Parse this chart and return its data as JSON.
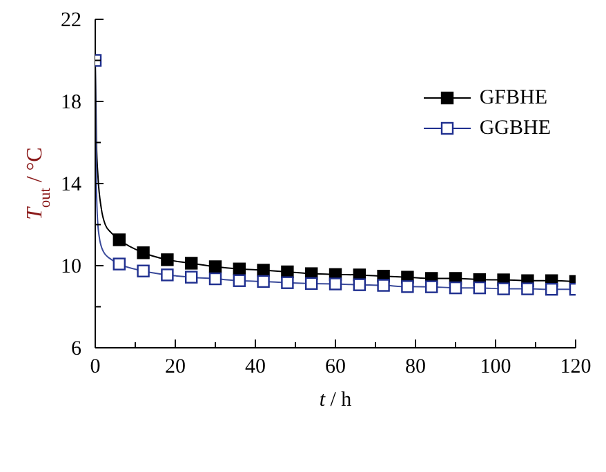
{
  "chart_data": {
    "type": "line",
    "xlabel": "t / h",
    "ylabel": "T$_{out}$ / °C",
    "xlim": [
      0,
      120
    ],
    "ylim": [
      6,
      22
    ],
    "xticks": [
      0,
      {
        "value": 10,
        "label": null
      },
      20,
      {
        "value": 30,
        "label": null
      },
      40,
      {
        "value": 50,
        "label": null
      },
      60,
      {
        "value": 70,
        "label": null
      },
      80,
      {
        "value": 90,
        "label": null
      },
      100,
      {
        "value": 110,
        "label": null
      },
      120
    ],
    "yticks": [
      6,
      {
        "value": 8,
        "label": null
      },
      10,
      {
        "value": 12,
        "label": null
      },
      14,
      {
        "value": 16,
        "label": null
      },
      18,
      {
        "value": 20,
        "label": null
      },
      22
    ],
    "legend": "top right",
    "marker": "square",
    "line_style": "solid",
    "grid": false,
    "series": [
      {
        "type": "line",
        "color": "#000000",
        "marker": "none",
        "x": [
          0,
          0.3,
          0.7,
          1.5,
          2.5,
          4,
          6,
          12,
          18,
          24,
          30,
          36,
          42,
          48,
          54,
          60,
          66,
          72,
          78,
          84,
          90,
          96,
          102,
          108,
          114,
          120
        ],
        "values": [
          20,
          16,
          14.3,
          12.8,
          12.0,
          11.6,
          11.26,
          10.63,
          10.29,
          10.12,
          9.95,
          9.84,
          9.78,
          9.7,
          9.61,
          9.57,
          9.55,
          9.49,
          9.44,
          9.38,
          9.38,
          9.32,
          9.31,
          9.27,
          9.27,
          9.23
        ]
      },
      {
        "type": "line",
        "color": "#3a4a9a",
        "marker": "none",
        "x": [
          0,
          0.2,
          0.5,
          1,
          2,
          4,
          6,
          12,
          18,
          24,
          30,
          36,
          42,
          48,
          54,
          60,
          66,
          72,
          78,
          84,
          90,
          96,
          102,
          108,
          114,
          120
        ],
        "values": [
          20,
          15,
          12.5,
          11.4,
          10.7,
          10.3,
          10.08,
          9.74,
          9.55,
          9.44,
          9.36,
          9.27,
          9.23,
          9.17,
          9.13,
          9.11,
          9.07,
          9.04,
          8.98,
          8.97,
          8.92,
          8.92,
          8.87,
          8.87,
          8.85,
          8.85
        ]
      },
      {
        "type": "scatter",
        "name": "GFBHE",
        "color": "#000000",
        "x": [
          6,
          12,
          18,
          24,
          30,
          36,
          42,
          48,
          54,
          60,
          66,
          72,
          78,
          84,
          90,
          96,
          102,
          108,
          114,
          120
        ],
        "values": [
          11.26,
          10.63,
          10.29,
          10.12,
          9.95,
          9.84,
          9.78,
          9.7,
          9.61,
          9.57,
          9.55,
          9.49,
          9.44,
          9.38,
          9.38,
          9.32,
          9.31,
          9.27,
          9.27,
          9.23
        ]
      },
      {
        "type": "scatter",
        "name": "GGBHE",
        "color": "#1f2f8f",
        "x": [
          0,
          6,
          12,
          18,
          24,
          30,
          36,
          42,
          48,
          54,
          60,
          66,
          72,
          78,
          84,
          90,
          96,
          102,
          108,
          114,
          120
        ],
        "values": [
          20,
          10.08,
          9.74,
          9.55,
          9.44,
          9.36,
          9.27,
          9.23,
          9.17,
          9.13,
          9.11,
          9.07,
          9.04,
          8.98,
          8.97,
          8.92,
          8.92,
          8.87,
          8.87,
          8.85,
          8.85
        ]
      }
    ]
  }
}
